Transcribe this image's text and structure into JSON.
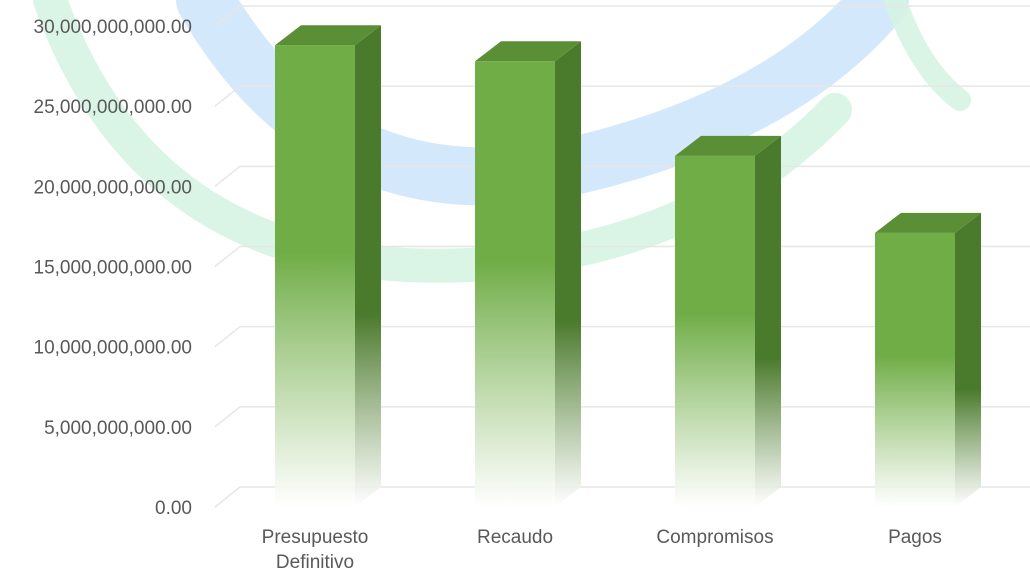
{
  "chart_data": {
    "type": "bar",
    "style": "3d-column",
    "categories": [
      [
        "Presupuesto",
        "Definitivo"
      ],
      [
        "Recaudo"
      ],
      [
        "Compromisos"
      ],
      [
        "Pagos"
      ]
    ],
    "values": [
      28800000000,
      27800000000,
      21900000000,
      17100000000
    ],
    "y_ticks": [
      "0.00",
      "5,000,000,000.00",
      "10,000,000,000.00",
      "15,000,000,000.00",
      "20,000,000,000.00",
      "25,000,000,000.00",
      "30,000,000,000.00"
    ],
    "ylim": [
      0,
      30000000000
    ],
    "grid": true,
    "legend": "none",
    "colors": {
      "bar_front": "#70ad47",
      "bar_side": "#4a7a2c",
      "bar_top": "#5a8f35",
      "gridline": "#e6e6e6",
      "watermark_blue": "#cfe6fb",
      "watermark_green": "#d3f3e2"
    }
  }
}
